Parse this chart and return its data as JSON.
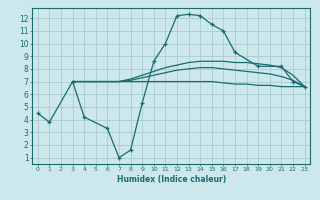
{
  "title": "",
  "xlabel": "Humidex (Indice chaleur)",
  "bg_color": "#cce8ec",
  "grid_color": "#aacccc",
  "line_color": "#1a6b6e",
  "xlim": [
    -0.5,
    23.5
  ],
  "ylim": [
    0.5,
    12.8
  ],
  "xticks": [
    0,
    1,
    2,
    3,
    4,
    5,
    6,
    7,
    8,
    9,
    10,
    11,
    12,
    13,
    14,
    15,
    16,
    17,
    18,
    19,
    20,
    21,
    22,
    23
  ],
  "yticks": [
    1,
    2,
    3,
    4,
    5,
    6,
    7,
    8,
    9,
    10,
    11,
    12
  ],
  "series": [
    {
      "x": [
        0,
        1,
        3,
        4,
        6,
        7,
        8,
        9,
        10,
        11,
        12,
        13,
        14,
        15,
        16,
        17,
        19,
        21,
        22,
        23
      ],
      "y": [
        4.5,
        3.8,
        7.0,
        4.2,
        3.3,
        1.0,
        1.6,
        5.3,
        8.6,
        10.0,
        12.2,
        12.3,
        12.2,
        11.5,
        11.0,
        9.3,
        8.2,
        8.2,
        7.0,
        6.6
      ],
      "marker": "+"
    },
    {
      "x": [
        3,
        4,
        5,
        6,
        7,
        8,
        9,
        10,
        11,
        12,
        13,
        14,
        15,
        16,
        17,
        18,
        19,
        20,
        21,
        22,
        23
      ],
      "y": [
        7.0,
        7.0,
        7.0,
        7.0,
        7.0,
        7.2,
        7.5,
        7.8,
        8.1,
        8.3,
        8.5,
        8.6,
        8.6,
        8.6,
        8.5,
        8.5,
        8.4,
        8.3,
        8.1,
        7.5,
        6.6
      ],
      "marker": null
    },
    {
      "x": [
        3,
        4,
        5,
        6,
        7,
        8,
        9,
        10,
        11,
        12,
        13,
        14,
        15,
        16,
        17,
        18,
        19,
        20,
        21,
        22,
        23
      ],
      "y": [
        7.0,
        7.0,
        7.0,
        7.0,
        7.0,
        7.1,
        7.3,
        7.5,
        7.7,
        7.9,
        8.0,
        8.1,
        8.1,
        8.0,
        7.9,
        7.8,
        7.7,
        7.6,
        7.4,
        7.1,
        6.6
      ],
      "marker": null
    },
    {
      "x": [
        3,
        4,
        5,
        6,
        7,
        8,
        9,
        10,
        11,
        12,
        13,
        14,
        15,
        16,
        17,
        18,
        19,
        20,
        21,
        22,
        23
      ],
      "y": [
        7.0,
        7.0,
        7.0,
        7.0,
        7.0,
        7.0,
        7.0,
        7.0,
        7.0,
        7.0,
        7.0,
        7.0,
        7.0,
        6.9,
        6.8,
        6.8,
        6.7,
        6.7,
        6.6,
        6.6,
        6.6
      ],
      "marker": null
    }
  ]
}
